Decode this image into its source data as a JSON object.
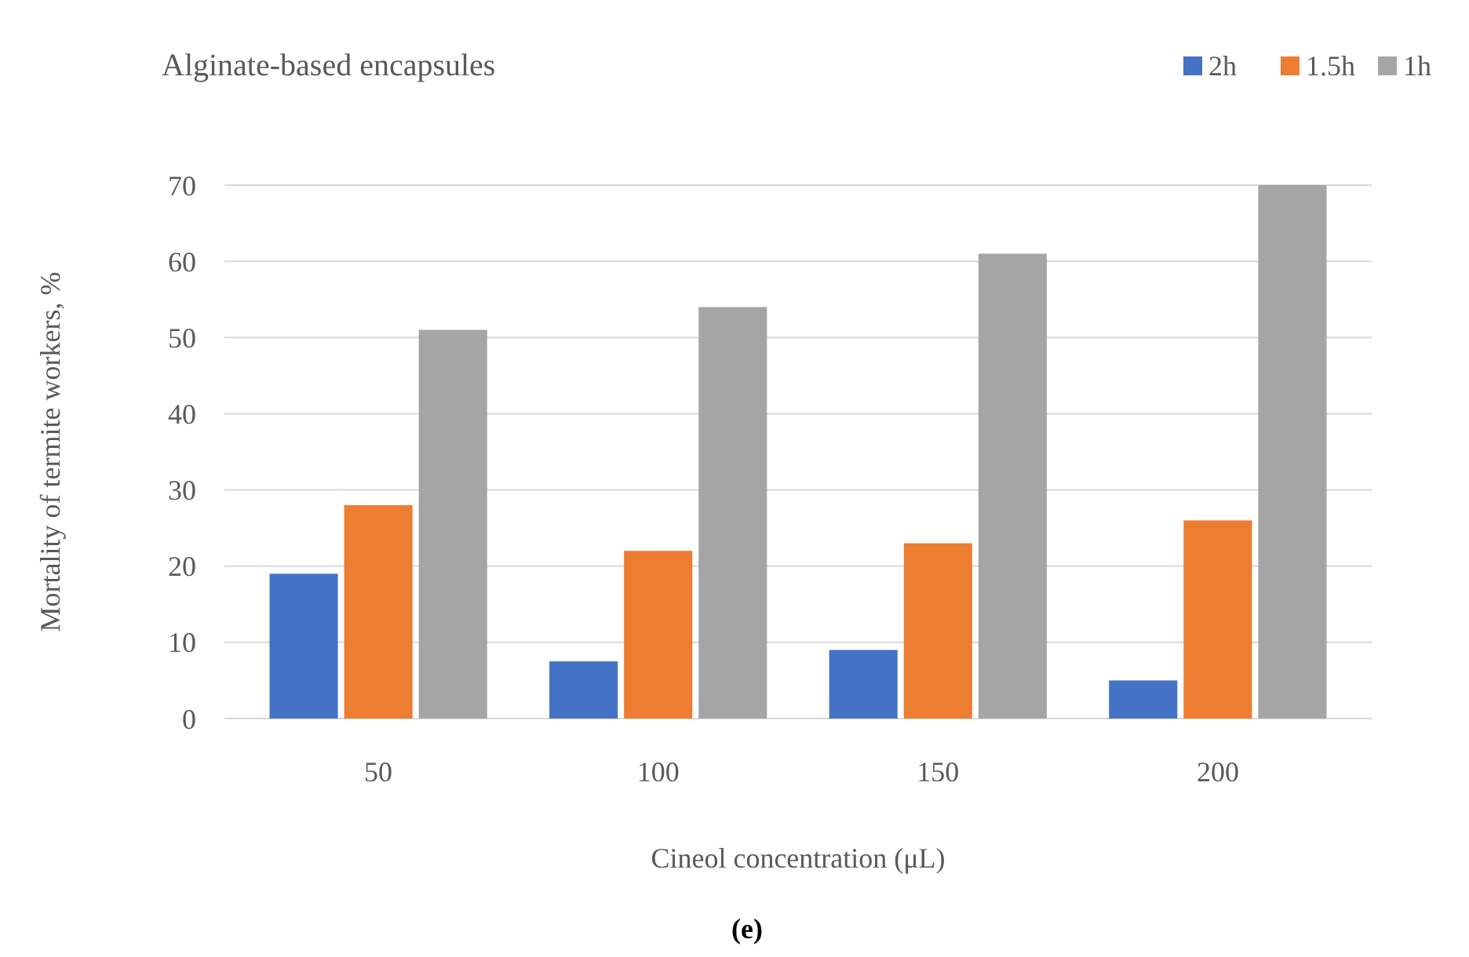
{
  "chart_data": {
    "type": "bar",
    "title": "Alginate-based encapsules",
    "xlabel": "Cineol concentration (μL)",
    "ylabel": "Mortality of termite workers, %",
    "categories": [
      "50",
      "100",
      "150",
      "200"
    ],
    "series": [
      {
        "name": "2h",
        "color": "#4472c4",
        "values": [
          19,
          7.5,
          9,
          5
        ]
      },
      {
        "name": "1.5h",
        "color": "#ed7d31",
        "values": [
          28,
          22,
          23,
          26
        ]
      },
      {
        "name": "1h",
        "color": "#a5a5a5",
        "values": [
          51,
          54,
          61,
          70
        ]
      }
    ],
    "ylim": [
      0,
      70
    ],
    "yticks": [
      0,
      10,
      20,
      30,
      40,
      50,
      60,
      70
    ],
    "grid": "y",
    "legend": "top right",
    "annotations": [
      "(e)"
    ]
  }
}
